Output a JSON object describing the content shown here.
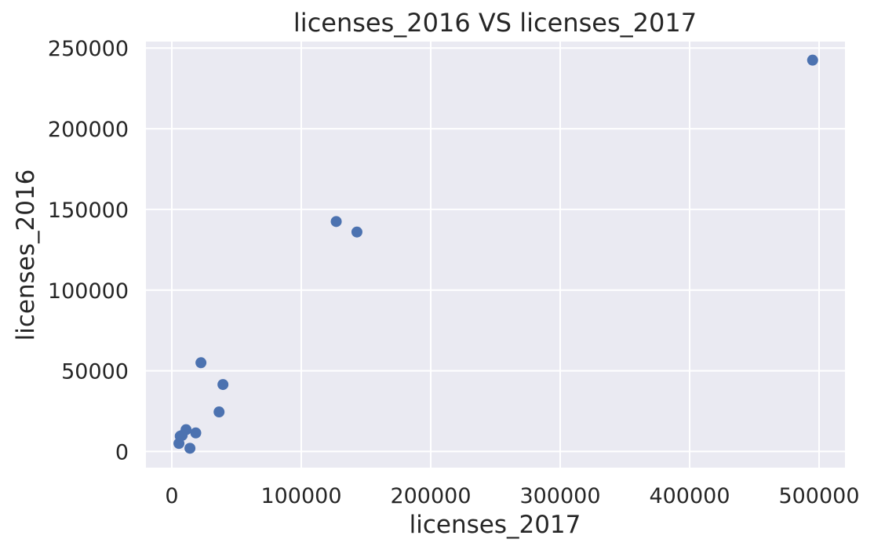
{
  "chart_data": {
    "type": "scatter",
    "title": "licenses_2016 VS licenses_2017",
    "xlabel": "licenses_2017",
    "ylabel": "licenses_2016",
    "xlim": [
      -20000,
      520000
    ],
    "ylim": [
      -10000,
      254000
    ],
    "xticks": [
      0,
      100000,
      200000,
      300000,
      400000,
      500000
    ],
    "yticks": [
      0,
      50000,
      100000,
      150000,
      200000,
      250000
    ],
    "grid": true,
    "legend": false,
    "colors": {
      "plot_bg": "#eaeaf2",
      "grid": "#ffffff",
      "marker": "#4c72b0"
    },
    "series": [
      {
        "x": [
          495000,
          127000,
          143000,
          22500,
          39500,
          36500,
          18500,
          11000,
          8000,
          6500,
          5500,
          14000
        ],
        "y": [
          242500,
          142500,
          136000,
          55000,
          41500,
          24500,
          11500,
          13500,
          10000,
          9500,
          5000,
          2000
        ]
      }
    ]
  }
}
